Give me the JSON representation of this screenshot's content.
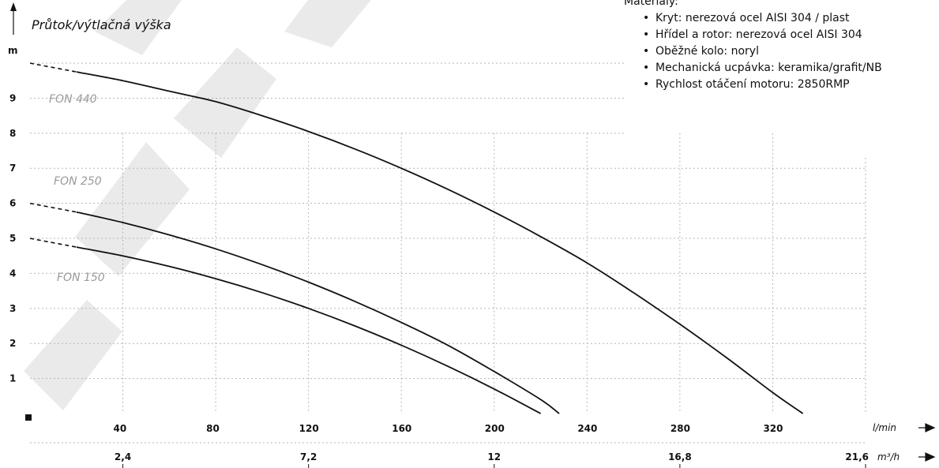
{
  "materials": {
    "title": "Materiály:",
    "items": [
      "Kryt: nerezová ocel AISI 304 / plast",
      "Hřídel a rotor: nerezová ocel AISI 304",
      "Oběžné kolo: noryl",
      "Mechanická ucpávka: keramika/grafit/NB",
      "Rychlost otáčení motoru: 2850RMP"
    ]
  },
  "chart_data": {
    "type": "line",
    "title": "",
    "ylabel": "Průtok/výtlačná výška",
    "y_unit": "m",
    "xlabel": "l/min",
    "x2label": "m³/h",
    "ylim": [
      0,
      10
    ],
    "xlim": [
      0,
      360
    ],
    "y_ticks": [
      "1",
      "2",
      "3",
      "4",
      "5",
      "6",
      "7",
      "8",
      "9"
    ],
    "x_ticks": [
      "40",
      "80",
      "120",
      "160",
      "200",
      "240",
      "280",
      "320"
    ],
    "x2_ticks": [
      {
        "value": 40,
        "label": "2,4"
      },
      {
        "value": 120,
        "label": "7,2"
      },
      {
        "value": 200,
        "label": "12"
      },
      {
        "value": 280,
        "label": "16,8"
      },
      {
        "value": 360,
        "label": "21,6"
      }
    ],
    "grid": true,
    "series": [
      {
        "name": "FON 440",
        "dashed_until": 20,
        "x": [
          0,
          20,
          40,
          60,
          80,
          100,
          120,
          140,
          160,
          180,
          200,
          220,
          240,
          260,
          280,
          300,
          320,
          333
        ],
        "y": [
          10.0,
          9.75,
          9.5,
          9.2,
          8.9,
          8.5,
          8.05,
          7.55,
          7.0,
          6.4,
          5.75,
          5.05,
          4.3,
          3.45,
          2.55,
          1.6,
          0.6,
          0.0
        ]
      },
      {
        "name": "FON 250",
        "dashed_until": 20,
        "x": [
          0,
          20,
          40,
          60,
          80,
          100,
          120,
          140,
          160,
          180,
          200,
          220,
          228
        ],
        "y": [
          6.0,
          5.75,
          5.45,
          5.1,
          4.7,
          4.25,
          3.75,
          3.2,
          2.6,
          1.95,
          1.2,
          0.4,
          0.0
        ]
      },
      {
        "name": "FON 150",
        "dashed_until": 20,
        "x": [
          0,
          20,
          40,
          60,
          80,
          100,
          120,
          140,
          160,
          180,
          200,
          220
        ],
        "y": [
          5.0,
          4.75,
          4.5,
          4.2,
          3.85,
          3.45,
          3.0,
          2.5,
          1.95,
          1.35,
          0.7,
          0.0
        ]
      }
    ]
  }
}
